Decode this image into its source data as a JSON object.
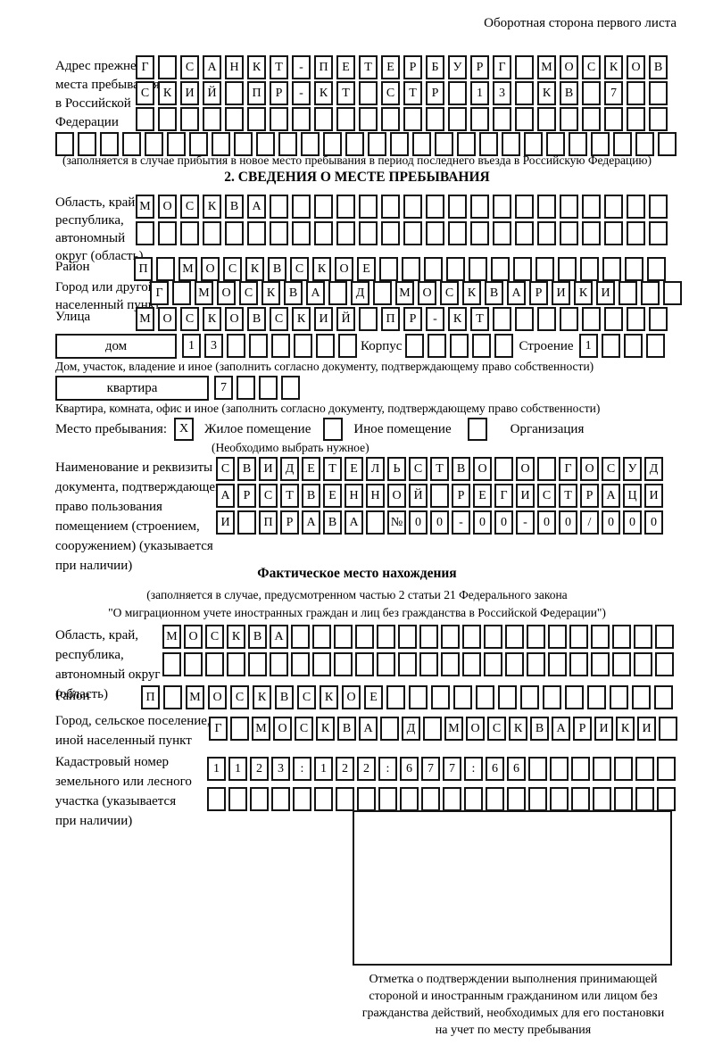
{
  "header_note": "Оборотная сторона первого листа",
  "prev_address": {
    "label_lines": [
      "Адрес прежнего",
      "места пребывания",
      "в Российской",
      "Федерации"
    ],
    "row1": {
      "text": "Г САНКТ-ПЕТЕРБУРГ МОСКОВ",
      "len": 24
    },
    "row2": {
      "text": "СКИЙ ПР-КТ СТР 13 КВ 7",
      "len": 24
    },
    "row3": {
      "text": "",
      "len": 24
    },
    "row4": {
      "text": "",
      "len": 28
    },
    "caption": "(заполняется в случае прибытия в новое место пребывания в период последнего въезда в Российскую Федерацию)"
  },
  "section2": {
    "title": "2. СВЕДЕНИЯ О МЕСТЕ ПРЕБЫВАНИЯ",
    "oblast": {
      "label_lines": [
        "Область, край,",
        "республика,",
        "автономный",
        "округ (область)"
      ],
      "row1": {
        "text": "МОСКВА",
        "len": 24
      },
      "row2": {
        "text": "",
        "len": 24
      }
    },
    "raion": {
      "label": "Район",
      "row": {
        "text": "П МОСКВСКОЕ",
        "len": 24
      }
    },
    "gorod": {
      "label_lines": [
        "Город или другой",
        "населенный пункт"
      ],
      "row": {
        "text": "Г МОСКВА Д МОСКВАРИКИ",
        "len": 24
      }
    },
    "ulitsa": {
      "label": "Улица",
      "row": {
        "text": "МОСКОВСКИЙ ПР-КТ",
        "len": 24
      }
    },
    "dom": {
      "box_label": "дом",
      "cells": {
        "text": "13",
        "len": 8
      },
      "korpus_label": "Корпус",
      "korpus_cells": {
        "text": "",
        "len": 5
      },
      "stroenie_label": "Строение",
      "stroenie_cells": {
        "text": "1",
        "len": 4
      },
      "caption": "Дом, участок, владение и иное (заполнить согласно документу, подтверждающему право собственности)"
    },
    "kvartira": {
      "box_label": "квартира",
      "cells": {
        "text": "7",
        "len": 4
      },
      "caption": "Квартира, комната, офис и иное (заполнить согласно документу, подтверждающему право собственности)"
    },
    "residence": {
      "label": "Место пребывания:",
      "options": [
        {
          "label": "Жилое помещение",
          "mark": "X"
        },
        {
          "label": "Иное помещение",
          "mark": ""
        },
        {
          "label": "Организация",
          "mark": ""
        }
      ],
      "note": "(Необходимо выбрать нужное)"
    },
    "document": {
      "label_lines": [
        "Наименование и реквизиты",
        "документа, подтверждающего",
        "право пользования",
        "помещением (строением,",
        "сооружением) (указывается",
        "при наличии)"
      ],
      "row1": {
        "text": "СВИДЕТЕЛЬСТВО О ГОСУД",
        "len": 21
      },
      "row2": {
        "text": "АРСТВЕННОЙ РЕГИСТРАЦИ",
        "len": 21
      },
      "row3": {
        "text": "И ПРАВА №00-00-00/000",
        "len": 21
      }
    }
  },
  "fact": {
    "title": "Фактическое место нахождения",
    "caption1": "(заполняется в случае, предусмотренном частью 2 статьи 21 Федерального закона",
    "caption2": "\"О миграционном учете иностранных граждан и лиц без гражданства в Российской Федерации\")",
    "oblast": {
      "label_lines": [
        "Область, край,",
        "республика,",
        "автономный округ",
        "(область)"
      ],
      "row1": {
        "text": "МОСКВА",
        "len": 24
      },
      "row2": {
        "text": "",
        "len": 24
      }
    },
    "raion": {
      "label": "Район",
      "row": {
        "text": "П МОСКВСКОЕ",
        "len": 24
      }
    },
    "gorod": {
      "label_lines": [
        "Город, сельское поселение,",
        "иной населенный пункт"
      ],
      "row": {
        "text": "Г МОСКВА Д МОСКВАРИКИ",
        "len": 22
      }
    },
    "kadastr": {
      "label_lines": [
        "Кадастровый номер",
        "земельного или лесного",
        "участка (указывается",
        "при наличии)"
      ],
      "row1": {
        "text": "1123:122:677:66",
        "len": 22
      },
      "row2": {
        "text": "",
        "len": 22
      }
    },
    "stamp_caption_lines": [
      "Отметка о подтверждении выполнения принимающей",
      "стороной и иностранным гражданином или лицом без",
      "гражданства действий, необходимых для его постановки",
      "на учет по месту пребывания"
    ]
  }
}
